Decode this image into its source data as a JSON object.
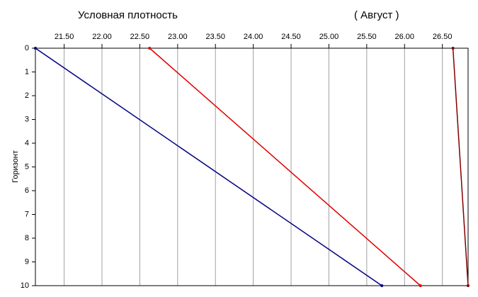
{
  "chart_data": {
    "type": "line",
    "title": "Условная плотность",
    "subtitle": "( Август )",
    "ylabel": "Горизонт",
    "xlim": [
      21.12,
      26.84
    ],
    "xticks": [
      {
        "value": 21.5,
        "label": "21.50"
      },
      {
        "value": 22,
        "label": "22.00"
      },
      {
        "value": 22.5,
        "label": "22.50"
      },
      {
        "value": 23,
        "label": "23.00"
      },
      {
        "value": 23.5,
        "label": "23.50"
      },
      {
        "value": 24,
        "label": "24.00"
      },
      {
        "value": 24.5,
        "label": "24.50"
      },
      {
        "value": 25,
        "label": "25.00"
      },
      {
        "value": 25.5,
        "label": "25.50"
      },
      {
        "value": 26,
        "label": "26.00"
      },
      {
        "value": 26.5,
        "label": "26.50"
      }
    ],
    "ylim": [
      0,
      10
    ],
    "yticks": [
      0,
      1,
      2,
      3,
      4,
      5,
      6,
      7,
      8,
      9,
      10
    ],
    "y_reversed": true,
    "grid": true,
    "series": [
      {
        "color": "#000080",
        "x": [
          21.12,
          25.7
        ],
        "y": [
          0,
          10
        ]
      },
      {
        "color": "#e00000",
        "x": [
          22.63,
          26.21
        ],
        "y": [
          0,
          10
        ]
      },
      {
        "color": "#800000",
        "x": [
          26.64,
          26.84
        ],
        "y": [
          0,
          10
        ]
      }
    ]
  }
}
